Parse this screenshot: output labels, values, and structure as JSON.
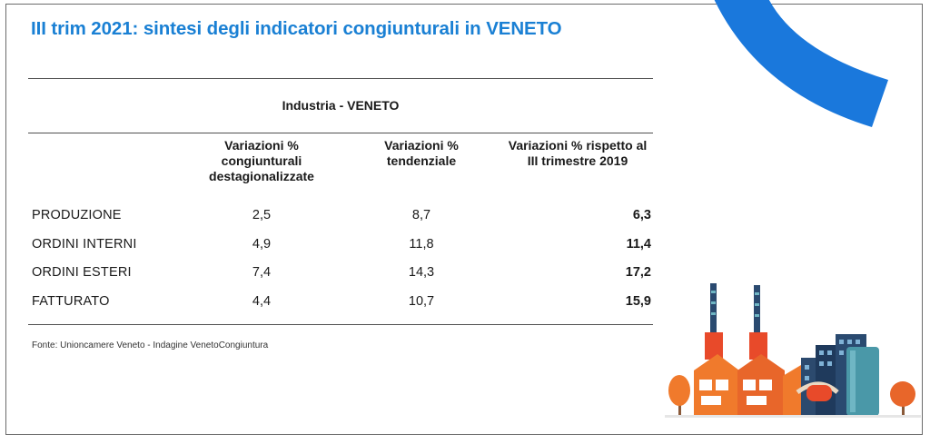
{
  "title": "III trim 2021: sintesi degli indicatori congiunturali in VENETO",
  "table": {
    "section_title": "Industria - VENETO",
    "headers": [
      "Variazioni % congiunturali destagionalizzate",
      "Variazioni % tendenziale",
      "Variazioni % rispetto al III trimestre 2019"
    ],
    "rows": [
      {
        "label": "PRODUZIONE",
        "v1": "2,5",
        "v2": "8,7",
        "v3": "6,3"
      },
      {
        "label": "ORDINI INTERNI",
        "v1": "4,9",
        "v2": "11,8",
        "v3": "11,4"
      },
      {
        "label": "ORDINI ESTERI",
        "v1": "7,4",
        "v2": "14,3",
        "v3": "17,2"
      },
      {
        "label": "FATTURATO",
        "v1": "4,4",
        "v2": "10,7",
        "v3": "15,9"
      }
    ]
  },
  "source": "Fonte: Unioncamere Veneto - Indagine VenetoCongiuntura",
  "colors": {
    "title": "#1a80d4",
    "arc": "#1a78dc",
    "orange": "#f07a2c",
    "red": "#e84a2a",
    "navy": "#1f3a5c",
    "teal": "#4a98a8"
  }
}
